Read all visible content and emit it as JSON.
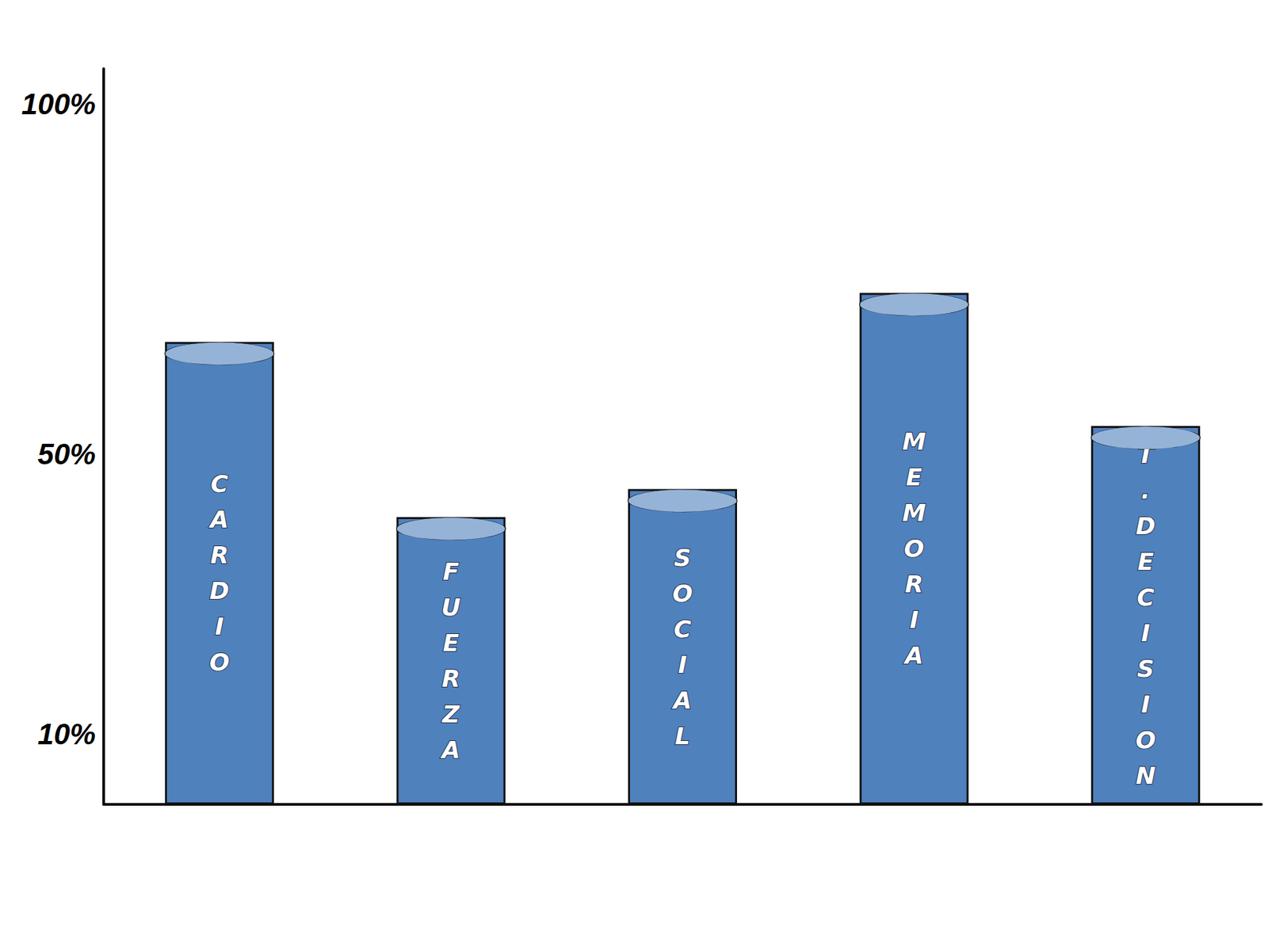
{
  "chart_data": {
    "type": "bar",
    "categories": [
      "CARDIO",
      "FUERZA",
      "SOCIAL",
      "MEMORIA",
      "T.DECISION"
    ],
    "values": [
      66,
      41,
      45,
      73,
      54
    ],
    "color": "#4f81bd",
    "ylim": [
      0,
      105
    ],
    "yticks": [
      {
        "value": 10,
        "label": "10%"
      },
      {
        "value": 50,
        "label": "50%"
      },
      {
        "value": 100,
        "label": "100%"
      }
    ],
    "grid": false
  }
}
